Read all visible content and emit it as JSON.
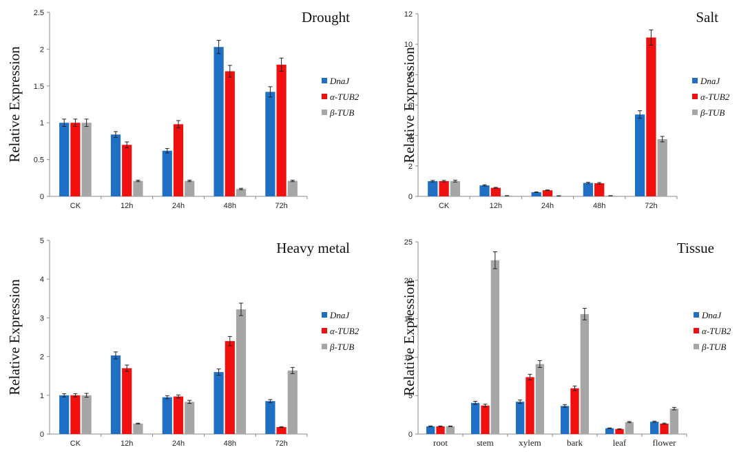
{
  "chart_data": [
    {
      "type": "bar",
      "title": "Drought",
      "ylabel": "Relative Expression",
      "ylim": [
        0,
        2.5
      ],
      "yticks": [
        0,
        0.5,
        1,
        1.5,
        2,
        2.5
      ],
      "ytick_labels": [
        "0",
        "0.5",
        "1",
        "1.5",
        "2",
        "2.5"
      ],
      "categories": [
        "CK",
        "12h",
        "24h",
        "48h",
        "72h"
      ],
      "colors": [
        "#1f6fc5",
        "#f01010",
        "#a6a6a6"
      ],
      "legend_position": "right",
      "series": [
        {
          "name": "DnaJ",
          "values": [
            1.0,
            0.84,
            0.62,
            2.03,
            1.42
          ],
          "errors": [
            0.05,
            0.04,
            0.03,
            0.09,
            0.07
          ]
        },
        {
          "name": "α-TUB2",
          "values": [
            1.0,
            0.7,
            0.98,
            1.7,
            1.79
          ],
          "errors": [
            0.05,
            0.04,
            0.05,
            0.08,
            0.09
          ]
        },
        {
          "name": "β-TUB",
          "values": [
            1.0,
            0.21,
            0.21,
            0.1,
            0.21
          ],
          "errors": [
            0.05,
            0.01,
            0.01,
            0.01,
            0.01
          ]
        }
      ]
    },
    {
      "type": "bar",
      "title": "Salt",
      "ylabel": "Relative Expression",
      "ylim": [
        0,
        12
      ],
      "yticks": [
        0,
        2,
        4,
        6,
        8,
        10,
        12
      ],
      "ytick_labels": [
        "0",
        "2",
        "4",
        "6",
        "8",
        "10",
        "12"
      ],
      "categories": [
        "CK",
        "12h",
        "24h",
        "48h",
        "72h"
      ],
      "colors": [
        "#1f6fc5",
        "#f01010",
        "#a6a6a6"
      ],
      "legend_position": "right",
      "series": [
        {
          "name": "DnaJ",
          "values": [
            1.0,
            0.72,
            0.27,
            0.88,
            5.38
          ],
          "errors": [
            0.05,
            0.04,
            0.02,
            0.05,
            0.25
          ]
        },
        {
          "name": "α-TUB2",
          "values": [
            1.0,
            0.56,
            0.4,
            0.86,
            10.44
          ],
          "errors": [
            0.05,
            0.03,
            0.02,
            0.05,
            0.5
          ]
        },
        {
          "name": "β-TUB",
          "values": [
            1.0,
            0.04,
            0.03,
            0.04,
            3.76
          ],
          "errors": [
            0.06,
            0.01,
            0.01,
            0.01,
            0.18
          ]
        }
      ]
    },
    {
      "type": "bar",
      "title": "Heavy metal",
      "ylabel": "Relative Expression",
      "ylim": [
        0,
        5
      ],
      "yticks": [
        0,
        1,
        2,
        3,
        4,
        5
      ],
      "ytick_labels": [
        "0",
        "1",
        "2",
        "3",
        "4",
        "5"
      ],
      "categories": [
        "CK",
        "12h",
        "24h",
        "48h",
        "72h"
      ],
      "colors": [
        "#1f6fc5",
        "#f01010",
        "#a6a6a6"
      ],
      "legend_position": "right",
      "series": [
        {
          "name": "DnaJ",
          "values": [
            1.0,
            2.03,
            0.95,
            1.6,
            0.85
          ],
          "errors": [
            0.04,
            0.09,
            0.04,
            0.08,
            0.04
          ]
        },
        {
          "name": "α-TUB2",
          "values": [
            1.0,
            1.7,
            0.97,
            2.4,
            0.18
          ],
          "errors": [
            0.04,
            0.08,
            0.04,
            0.12,
            0.01
          ]
        },
        {
          "name": "β-TUB",
          "values": [
            1.0,
            0.27,
            0.83,
            3.22,
            1.64
          ],
          "errors": [
            0.05,
            0.01,
            0.04,
            0.16,
            0.08
          ]
        }
      ]
    },
    {
      "type": "bar",
      "title": "Tissue",
      "ylabel": "Relative Expression",
      "ylim": [
        0,
        25
      ],
      "yticks": [
        0,
        5,
        10,
        15,
        20,
        25
      ],
      "ytick_labels": [
        "0",
        "5",
        "10",
        "15",
        "20",
        "25"
      ],
      "categories": [
        "root",
        "stem",
        "xylem",
        "bark",
        "leaf",
        "flower"
      ],
      "colors": [
        "#1f6fc5",
        "#f01010",
        "#a6a6a6"
      ],
      "legend_position": "right",
      "series": [
        {
          "name": "DnaJ",
          "values": [
            1.0,
            4.05,
            4.2,
            3.65,
            0.75,
            1.6
          ],
          "errors": [
            0.05,
            0.2,
            0.22,
            0.18,
            0.04,
            0.08
          ]
        },
        {
          "name": "α-TUB2",
          "values": [
            1.0,
            3.7,
            7.4,
            5.95,
            0.65,
            1.35
          ],
          "errors": [
            0.05,
            0.18,
            0.37,
            0.3,
            0.03,
            0.07
          ]
        },
        {
          "name": "β-TUB",
          "values": [
            1.0,
            22.6,
            9.1,
            15.6,
            1.55,
            3.3
          ],
          "errors": [
            0.05,
            1.1,
            0.45,
            0.75,
            0.08,
            0.16
          ]
        }
      ]
    }
  ]
}
